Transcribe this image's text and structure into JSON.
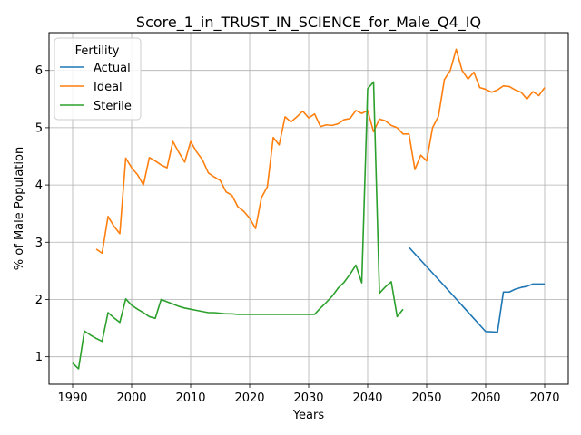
{
  "chart_data": {
    "type": "line",
    "title": "Score_1_in_TRUST_IN_SCIENCE_for_Male_Q4_IQ",
    "xlabel": "Years",
    "ylabel": "% of Male Population",
    "xlim": [
      1986,
      2074
    ],
    "ylim": [
      0.52,
      6.66
    ],
    "xticks": [
      1990,
      2000,
      2010,
      2020,
      2030,
      2040,
      2050,
      2060,
      2070
    ],
    "yticks": [
      1,
      2,
      3,
      4,
      5,
      6
    ],
    "grid": true,
    "legend": {
      "title": "Fertility",
      "placement": "top-left"
    },
    "series": [
      {
        "name": "Actual",
        "color": "#1f77b4",
        "x": [
          2047,
          2052,
          2060,
          2062,
          2063,
          2064,
          2065,
          2066,
          2067,
          2068,
          2069,
          2070
        ],
        "y": [
          2.91,
          2.35,
          1.44,
          1.43,
          2.13,
          2.13,
          2.18,
          2.21,
          2.23,
          2.27,
          2.27,
          2.27
        ]
      },
      {
        "name": "Ideal",
        "color": "#ff7f0e",
        "x": [
          1994,
          1995,
          1996,
          1997,
          1998,
          1999,
          2000,
          2001,
          2002,
          2003,
          2004,
          2005,
          2006,
          2007,
          2008,
          2009,
          2010,
          2011,
          2012,
          2013,
          2014,
          2015,
          2016,
          2017,
          2018,
          2019,
          2020,
          2021,
          2022,
          2023,
          2024,
          2025,
          2026,
          2027,
          2028,
          2029,
          2030,
          2031,
          2032,
          2033,
          2034,
          2035,
          2036,
          2037,
          2038,
          2039,
          2040,
          2041,
          2042,
          2043,
          2044,
          2045,
          2046,
          2047,
          2048,
          2049,
          2050,
          2051,
          2052,
          2053,
          2054,
          2055,
          2056,
          2057,
          2058,
          2059,
          2060,
          2061,
          2062,
          2063,
          2064,
          2065,
          2066,
          2067,
          2068,
          2069,
          2070
        ],
        "y": [
          2.88,
          2.81,
          3.45,
          3.28,
          3.15,
          4.47,
          4.3,
          4.18,
          4.0,
          4.48,
          4.42,
          4.35,
          4.3,
          4.76,
          4.57,
          4.4,
          4.76,
          4.58,
          4.44,
          4.21,
          4.14,
          4.08,
          3.88,
          3.82,
          3.62,
          3.54,
          3.42,
          3.24,
          3.78,
          3.97,
          4.83,
          4.7,
          5.19,
          5.1,
          5.19,
          5.29,
          5.17,
          5.24,
          5.02,
          5.05,
          5.04,
          5.07,
          5.14,
          5.16,
          5.3,
          5.25,
          5.3,
          4.93,
          5.15,
          5.12,
          5.04,
          5.0,
          4.89,
          4.89,
          4.27,
          4.52,
          4.42,
          5.0,
          5.2,
          5.84,
          6.0,
          6.37,
          6.0,
          5.85,
          5.97,
          5.7,
          5.67,
          5.62,
          5.66,
          5.73,
          5.72,
          5.66,
          5.62,
          5.5,
          5.63,
          5.56,
          5.7
        ]
      },
      {
        "name": "Sterile",
        "color": "#2ca02c",
        "x": [
          1990,
          1991,
          1992,
          1993,
          1994,
          1995,
          1996,
          1997,
          1998,
          1999,
          2000,
          2001,
          2002,
          2003,
          2004,
          2005,
          2006,
          2007,
          2008,
          2009,
          2010,
          2011,
          2012,
          2013,
          2014,
          2015,
          2016,
          2017,
          2018,
          2019,
          2020,
          2021,
          2022,
          2023,
          2024,
          2025,
          2026,
          2027,
          2028,
          2029,
          2030,
          2031,
          2032,
          2033,
          2034,
          2035,
          2036,
          2037,
          2038,
          2039,
          2040,
          2041,
          2042,
          2043,
          2044,
          2045,
          2046
        ],
        "y": [
          0.89,
          0.79,
          1.45,
          1.38,
          1.32,
          1.27,
          1.77,
          1.68,
          1.6,
          2.01,
          1.9,
          1.83,
          1.77,
          1.7,
          1.67,
          2.0,
          1.96,
          1.92,
          1.88,
          1.85,
          1.83,
          1.81,
          1.79,
          1.77,
          1.77,
          1.76,
          1.75,
          1.75,
          1.74,
          1.74,
          1.74,
          1.74,
          1.74,
          1.74,
          1.74,
          1.74,
          1.74,
          1.74,
          1.74,
          1.74,
          1.74,
          1.74,
          1.85,
          1.95,
          2.06,
          2.2,
          2.3,
          2.44,
          2.6,
          2.29,
          5.68,
          5.8,
          2.11,
          2.22,
          2.31,
          1.7,
          1.83
        ]
      }
    ]
  }
}
